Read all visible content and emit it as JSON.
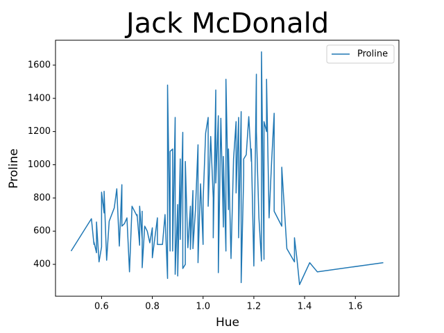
{
  "chart_data": {
    "type": "line",
    "title": "Jack McDonald",
    "x_label": "Hue",
    "y_label": "Proline",
    "xlim": [
      0.4185,
      1.7715
    ],
    "ylim": [
      208,
      1750
    ],
    "xticks": [
      0.6,
      0.8,
      {
        "value": 1.0,
        "label": "1.0"
      },
      1.2,
      1.4,
      1.6
    ],
    "yticks": [
      400,
      600,
      800,
      1000,
      1200,
      1400,
      1600
    ],
    "legend": "upper right",
    "series": [
      {
        "name": "Proline",
        "color": "#1f77b4",
        "x": [
          0.48,
          0.56,
          0.57,
          0.57,
          0.58,
          0.58,
          0.59,
          0.6,
          0.6,
          0.61,
          0.61,
          0.62,
          0.63,
          0.65,
          0.66,
          0.67,
          0.68,
          0.68,
          0.69,
          0.7,
          0.71,
          0.72,
          0.74,
          0.74,
          0.75,
          0.75,
          0.76,
          0.76,
          0.76,
          0.77,
          0.78,
          0.79,
          0.8,
          0.8,
          0.82,
          0.82,
          0.84,
          0.85,
          0.86,
          0.86,
          0.87,
          0.87,
          0.88,
          0.88,
          0.89,
          0.89,
          0.9,
          0.9,
          0.91,
          0.91,
          0.92,
          0.92,
          0.93,
          0.93,
          0.94,
          0.95,
          0.95,
          0.96,
          0.96,
          0.97,
          0.98,
          0.98,
          0.99,
          1.0,
          1.0,
          1.01,
          1.02,
          1.02,
          1.03,
          1.04,
          1.04,
          1.05,
          1.05,
          1.06,
          1.06,
          1.07,
          1.08,
          1.08,
          1.09,
          1.09,
          1.1,
          1.1,
          1.11,
          1.12,
          1.13,
          1.13,
          1.14,
          1.14,
          1.15,
          1.15,
          1.16,
          1.16,
          1.17,
          1.18,
          1.19,
          1.19,
          1.2,
          1.21,
          1.21,
          1.22,
          1.23,
          1.23,
          1.23,
          1.24,
          1.24,
          1.25,
          1.25,
          1.26,
          1.27,
          1.28,
          1.28,
          1.31,
          1.31,
          1.33,
          1.36,
          1.36,
          1.37,
          1.38,
          1.42,
          1.45,
          1.71
        ],
        "values": [
          480,
          675,
          520,
          535,
          470,
          655,
          415,
          505,
          835,
          710,
          840,
          425,
          660,
          740,
          855,
          510,
          880,
          630,
          645,
          680,
          355,
          750,
          690,
          700,
          515,
          750,
          550,
          720,
          380,
          630,
          600,
          530,
          620,
          440,
          680,
          520,
          520,
          700,
          315,
          1480,
          480,
          1080,
          1095,
          480,
          1285,
          340,
          760,
          330,
          1035,
          550,
          1195,
          375,
          400,
          1020,
          500,
          750,
          490,
          845,
          495,
          730,
          1120,
          410,
          885,
          520,
          780,
          1190,
          1285,
          750,
          1170,
          800,
          560,
          1450,
          890,
          1295,
          350,
          1280,
          625,
          1050,
          480,
          1515,
          730,
          1095,
          435,
          1035,
          1260,
          830,
          1285,
          560,
          1320,
          290,
          935,
          1035,
          1060,
          1290,
          1020,
          1095,
          390,
          1545,
          1200,
          680,
          420,
          435,
          1680,
          430,
          1260,
          1200,
          1515,
          680,
          1020,
          1310,
          720,
          630,
          985,
          495,
          415,
          560,
          430,
          278,
          410,
          355,
          410
        ]
      }
    ]
  }
}
